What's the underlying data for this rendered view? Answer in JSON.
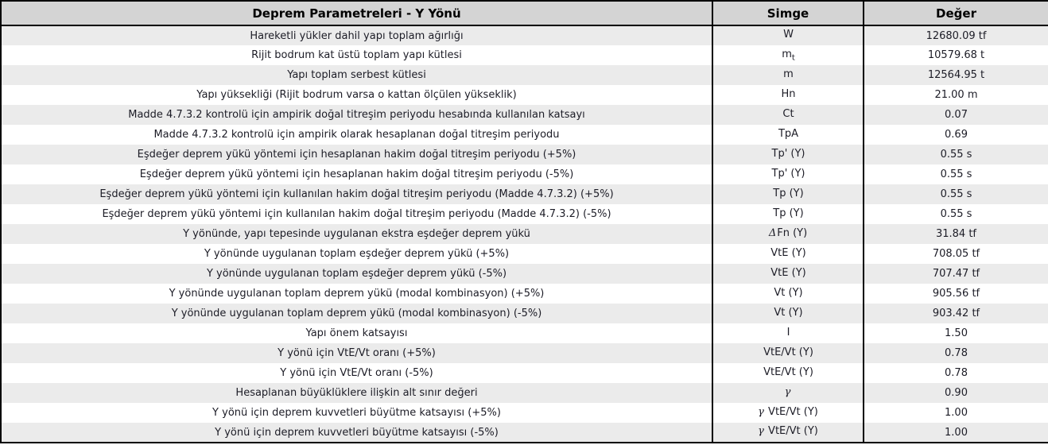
{
  "colors": {
    "header_bg": "#d4d4d4",
    "row_alt_bg": "#ebebeb",
    "row_bg": "#ffffff",
    "border_color": "#000000",
    "text_color": "#1c1c26",
    "header_text_color": "#000000"
  },
  "table": {
    "title": "Deprem Parametreleri - Y Yönü",
    "columns": {
      "symbol": "Simge",
      "value": "Değer"
    },
    "rows": [
      {
        "label": "Hareketli yükler dahil yapı toplam ağırlığı",
        "symbol": "W",
        "value": "12680.09 tf"
      },
      {
        "label": "Rijit bodrum kat üstü toplam yapı kütlesi",
        "symbol": "m",
        "symbol_sub": "t",
        "value": "10579.68 t"
      },
      {
        "label": "Yapı toplam serbest kütlesi",
        "symbol": "m",
        "value": "12564.95 t"
      },
      {
        "label": "Yapı yüksekliği (Rijit bodrum varsa o kattan ölçülen yükseklik)",
        "symbol": "Hn",
        "value": "21.00 m"
      },
      {
        "label": "Madde 4.7.3.2 kontrolü için ampirik doğal titreşim periyodu hesabında kullanılan katsayı",
        "symbol": "Ct",
        "value": "0.07"
      },
      {
        "label": "Madde 4.7.3.2 kontrolü için ampirik olarak hesaplanan doğal titreşim periyodu",
        "symbol": "TpA",
        "value": "0.69"
      },
      {
        "label": "Eşdeğer deprem yükü yöntemi için hesaplanan hakim doğal titreşim periyodu (+5%)",
        "symbol": "Tp' (Y)",
        "value": "0.55 s"
      },
      {
        "label": "Eşdeğer deprem yükü yöntemi için hesaplanan hakim doğal titreşim periyodu (-5%)",
        "symbol": "Tp' (Y)",
        "value": "0.55 s"
      },
      {
        "label": "Eşdeğer deprem yükü yöntemi için kullanılan hakim doğal titreşim periyodu (Madde 4.7.3.2) (+5%)",
        "symbol": "Tp (Y)",
        "value": "0.55 s"
      },
      {
        "label": "Eşdeğer deprem yükü yöntemi için kullanılan hakim doğal titreşim periyodu (Madde 4.7.3.2) (-5%)",
        "symbol": "Tp (Y)",
        "value": "0.55 s"
      },
      {
        "label": "Y yönünde, yapı tepesinde uygulanan ekstra eşdeğer deprem yükü",
        "symbol_prefix": "Δ",
        "symbol": "Fn (Y)",
        "value": "31.84 tf"
      },
      {
        "label": "Y yönünde uygulanan toplam eşdeğer deprem yükü (+5%)",
        "symbol": "VtE (Y)",
        "value": "708.05 tf"
      },
      {
        "label": "Y yönünde uygulanan toplam eşdeğer deprem yükü (-5%)",
        "symbol": "VtE (Y)",
        "value": "707.47 tf"
      },
      {
        "label": "Y yönünde uygulanan toplam deprem yükü (modal kombinasyon) (+5%)",
        "symbol": "Vt (Y)",
        "value": "905.56 tf"
      },
      {
        "label": "Y yönünde uygulanan toplam deprem yükü (modal kombinasyon) (-5%)",
        "symbol": "Vt (Y)",
        "value": "903.42 tf"
      },
      {
        "label": "Yapı önem katsayısı",
        "symbol": "I",
        "value": "1.50"
      },
      {
        "label": "Y yönü için VtE/Vt oranı (+5%)",
        "symbol": "VtE/Vt (Y)",
        "value": "0.78"
      },
      {
        "label": "Y yönü için VtE/Vt oranı (-5%)",
        "symbol": "VtE/Vt (Y)",
        "value": "0.78"
      },
      {
        "label": "Hesaplanan büyüklüklere ilişkin alt sınır değeri",
        "symbol_prefix": "γ",
        "symbol": "",
        "value": "0.90"
      },
      {
        "label": "Y yönü için deprem kuvvetleri büyütme katsayısı (+5%)",
        "symbol_prefix": "γ",
        "symbol": " VtE/Vt (Y)",
        "value": "1.00"
      },
      {
        "label": "Y yönü için deprem kuvvetleri büyütme katsayısı (-5%)",
        "symbol_prefix": "γ",
        "symbol": " VtE/Vt (Y)",
        "value": "1.00"
      }
    ]
  }
}
